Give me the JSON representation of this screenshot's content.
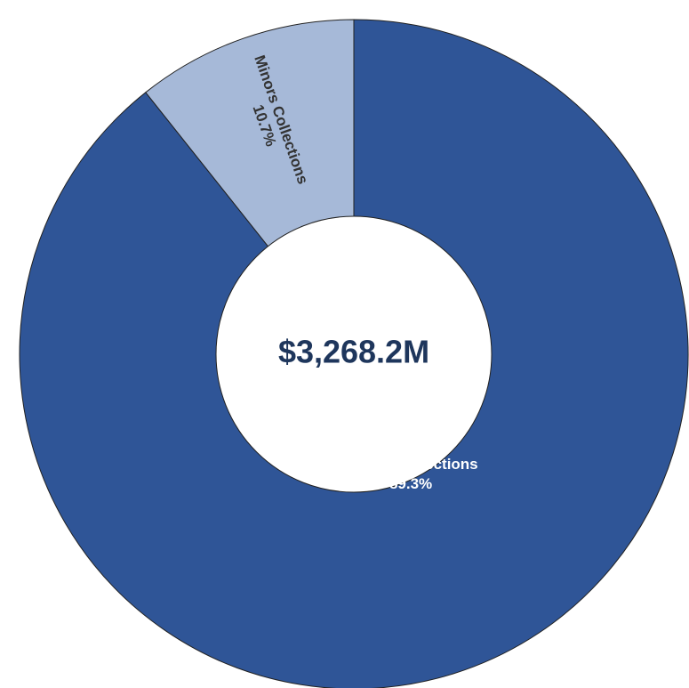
{
  "chart_data": {
    "type": "pie",
    "donut": true,
    "center_label": "$3,268.2M",
    "slices": [
      {
        "label": "Majors Collections",
        "percent_label": "89.3%",
        "value": 89.3,
        "color": "#2f5597",
        "text_color": "#ffffff"
      },
      {
        "label": "Minors Collections",
        "percent_label": "10.7%",
        "value": 10.7,
        "color": "#a6b9d8",
        "text_color": "#333333"
      }
    ]
  }
}
